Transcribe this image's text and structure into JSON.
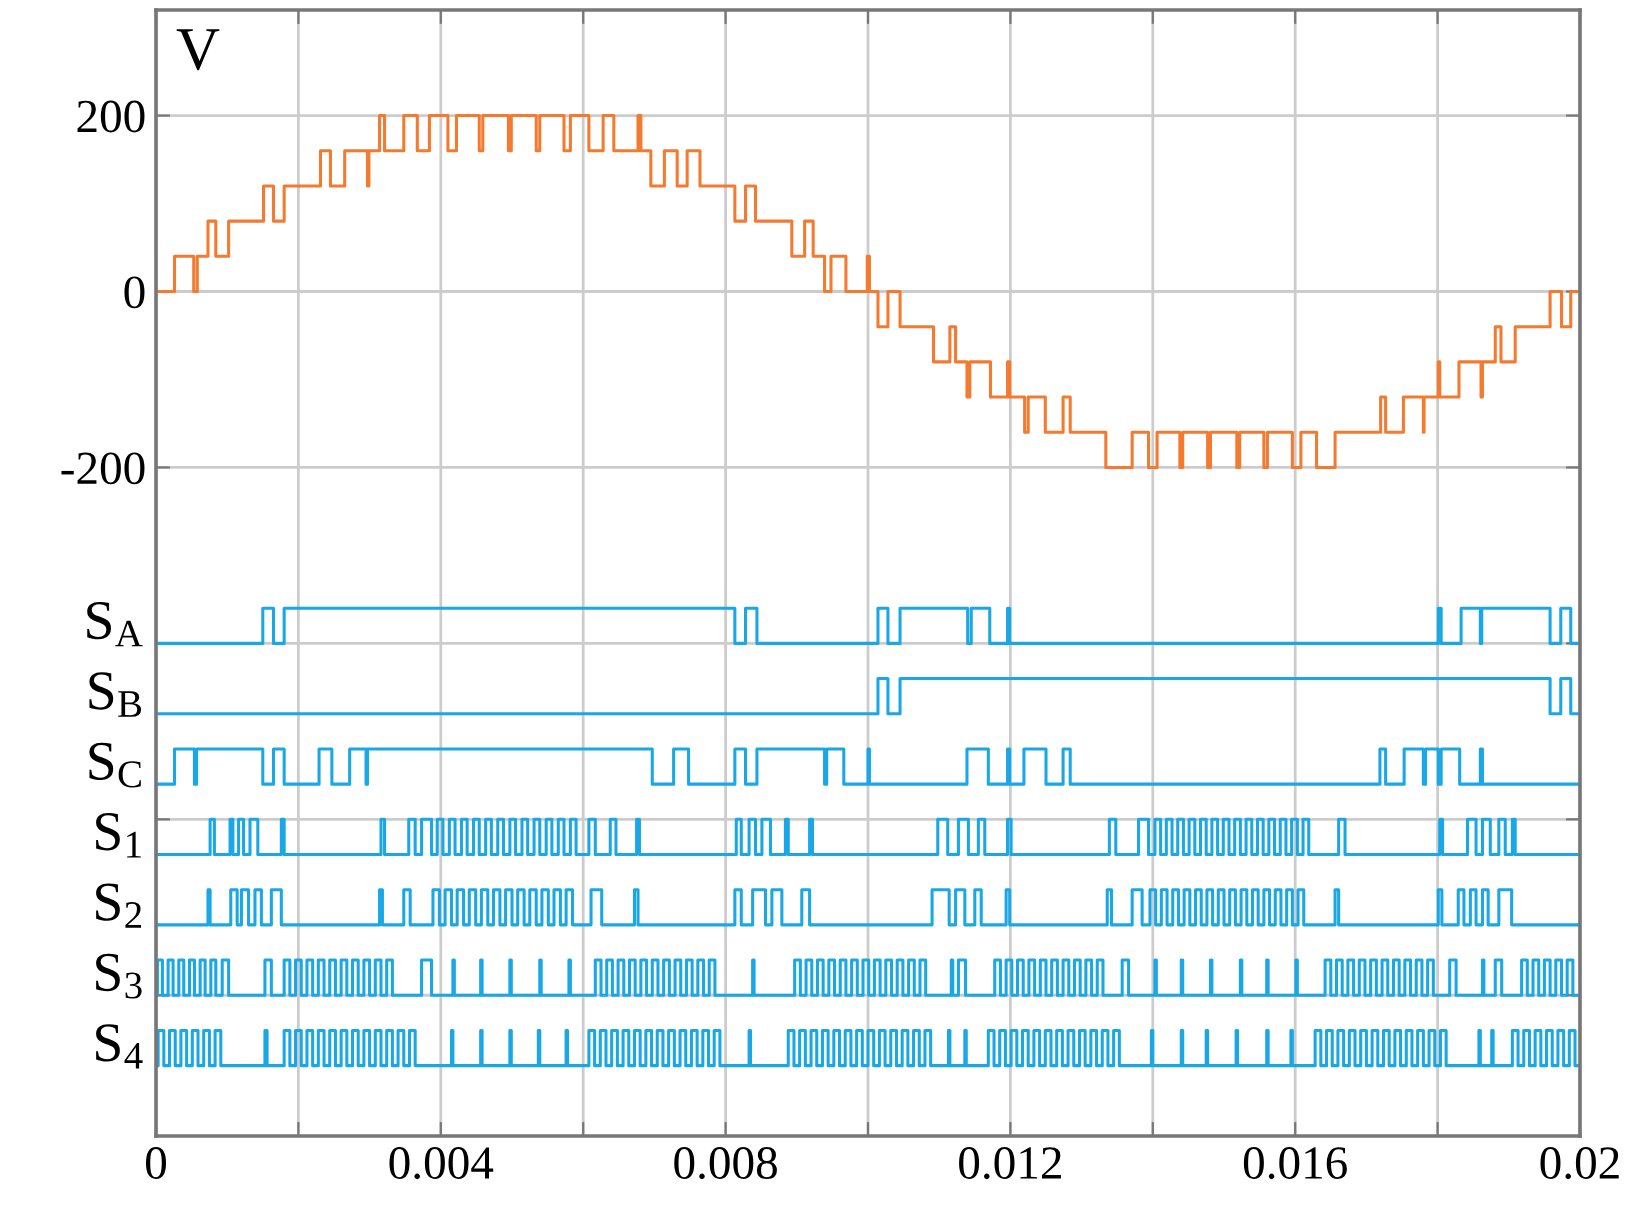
{
  "chart_data": {
    "type": "step",
    "ylabel": "V",
    "grid": true,
    "xlim": [
      0,
      0.02
    ],
    "ylim": [
      -960,
      320
    ],
    "xticks": [
      0,
      {
        "value": 0.002,
        "label": null
      },
      0.004,
      {
        "value": 0.006,
        "label": null
      },
      0.008,
      {
        "value": 0.01,
        "label": null
      },
      0.012,
      {
        "value": 0.014,
        "label": null
      },
      0.016,
      {
        "value": 0.018,
        "label": null
      },
      0.02
    ],
    "yticks": [
      200,
      0,
      -200,
      {
        "value": -400,
        "label": null
      },
      {
        "value": -600,
        "label": null
      },
      {
        "value": -800,
        "label": null
      }
    ],
    "series": [
      {
        "color": "#f47a30",
        "x": [
          0,
          0.00026,
          0.00053,
          0.00058,
          0.00073,
          0.00084,
          0.00102,
          0.00151,
          0.00165,
          0.0018,
          0.00231,
          0.00245,
          0.00265,
          0.00297,
          0.00299,
          0.00314,
          0.00321,
          0.00348,
          0.00367,
          0.00384,
          0.0041,
          0.00422,
          0.00454,
          0.00459,
          0.00495,
          0.00499,
          0.00534,
          0.00539,
          0.00573,
          0.00582,
          0.00608,
          0.00628,
          0.00643,
          0.00677,
          0.00681,
          0.00695,
          0.00714,
          0.00732,
          0.00746,
          0.00764,
          0.00813,
          0.00828,
          0.00842,
          0.00893,
          0.00911,
          0.00923,
          0.00939,
          0.00948,
          0.00969,
          0.00999,
          0.01002,
          0.01014,
          0.01028,
          0.01045,
          0.01092,
          0.01115,
          0.01123,
          0.01139,
          0.01143,
          0.01172,
          0.01196,
          0.01199,
          0.0122,
          0.01225,
          0.01249,
          0.01274,
          0.01284,
          0.01334,
          0.01371,
          0.01394,
          0.01406,
          0.01438,
          0.01442,
          0.01477,
          0.01481,
          0.01518,
          0.01522,
          0.01556,
          0.01561,
          0.01596,
          0.01608,
          0.0163,
          0.01656,
          0.0172,
          0.01727,
          0.01752,
          0.0178,
          0.01781,
          0.01801,
          0.01803,
          0.0183,
          0.01861,
          0.01863,
          0.01881,
          0.01889,
          0.01909,
          0.01958,
          0.01974,
          0.01987,
          0.02
        ],
        "values": [
          0,
          40,
          0,
          40,
          80,
          40,
          80,
          120,
          80,
          120,
          160,
          120,
          160,
          120,
          160,
          200,
          160,
          200,
          160,
          200,
          160,
          200,
          160,
          200,
          160,
          200,
          160,
          200,
          160,
          200,
          160,
          200,
          160,
          200,
          160,
          120,
          160,
          120,
          160,
          120,
          80,
          120,
          80,
          40,
          80,
          40,
          0,
          40,
          0,
          40,
          0,
          -40,
          0,
          -40,
          -80,
          -40,
          -80,
          -120,
          -80,
          -120,
          -80,
          -120,
          -160,
          -120,
          -160,
          -120,
          -160,
          -200,
          -160,
          -200,
          -160,
          -200,
          -160,
          -200,
          -160,
          -200,
          -160,
          -200,
          -160,
          -200,
          -160,
          -200,
          -160,
          -120,
          -160,
          -120,
          -160,
          -120,
          -80,
          -120,
          -80,
          -120,
          -80,
          -40,
          -80,
          -40,
          0,
          -40,
          0,
          0
        ]
      },
      {
        "name": "S$_{A}$",
        "color": "#1aa7e6",
        "x": [
          0,
          0.0015,
          0.00165,
          0.0018,
          0.00813,
          0.00828,
          0.00844,
          0.01014,
          0.01028,
          0.01045,
          0.0114,
          0.01145,
          0.01171,
          0.01196,
          0.01199,
          0.01801,
          0.01805,
          0.01833,
          0.0186,
          0.01862,
          0.01958,
          0.01973,
          0.01987,
          0.02
        ],
        "values": [
          -400,
          -360,
          -400,
          -360,
          -400,
          -360,
          -400,
          -360,
          -400,
          -360,
          -400,
          -360,
          -400,
          -360,
          -400,
          -360,
          -400,
          -360,
          -400,
          -360,
          -400,
          -360,
          -400,
          -400
        ]
      },
      {
        "name": "S$_{B}$",
        "color": "#1aa7e6",
        "x": [
          0,
          0.01014,
          0.01028,
          0.01045,
          0.01958,
          0.01973,
          0.01987,
          0.02
        ],
        "values": [
          -480,
          -440,
          -480,
          -440,
          -480,
          -440,
          -480,
          -480
        ]
      },
      {
        "name": "S$_{C}$",
        "color": "#1aa7e6",
        "x": [
          0,
          0.00026,
          0.00054,
          0.00057,
          0.0015,
          0.00165,
          0.0018,
          0.00229,
          0.00247,
          0.00272,
          0.00295,
          0.00297,
          0.00697,
          0.00727,
          0.00748,
          0.00813,
          0.00828,
          0.00844,
          0.00939,
          0.00942,
          0.00966,
          0.01,
          0.01002,
          0.01139,
          0.01169,
          0.01196,
          0.01199,
          0.01219,
          0.0125,
          0.01274,
          0.01284,
          0.01719,
          0.01727,
          0.01753,
          0.0178,
          0.01783,
          0.01801,
          0.01805,
          0.01831,
          0.0186,
          0.01863,
          0.02
        ],
        "values": [
          -560,
          -520,
          -560,
          -520,
          -560,
          -520,
          -560,
          -520,
          -560,
          -520,
          -560,
          -520,
          -560,
          -520,
          -560,
          -520,
          -560,
          -520,
          -560,
          -520,
          -560,
          -520,
          -560,
          -520,
          -560,
          -520,
          -560,
          -520,
          -560,
          -520,
          -560,
          -520,
          -560,
          -520,
          -560,
          -520,
          -560,
          -520,
          -560,
          -520,
          -560,
          -560
        ]
      },
      {
        "name": "S$_{1}$",
        "color": "#1aa7e6",
        "x": [
          0,
          0.00076,
          0.00082,
          0.00104,
          0.00108,
          0.00116,
          0.00123,
          0.00132,
          0.00143,
          0.00176,
          0.0018,
          0.00316,
          0.00321,
          0.00355,
          0.00364,
          0.00373,
          0.00387,
          0.00395,
          0.00403,
          0.00412,
          0.0042,
          0.00429,
          0.00437,
          0.00446,
          0.00454,
          0.00463,
          0.00471,
          0.0048,
          0.00488,
          0.00497,
          0.00505,
          0.00514,
          0.00522,
          0.00531,
          0.00539,
          0.00548,
          0.00556,
          0.00565,
          0.00573,
          0.00582,
          0.0059,
          0.00608,
          0.00617,
          0.00638,
          0.00646,
          0.00675,
          0.00679,
          0.00815,
          0.00822,
          0.00833,
          0.00842,
          0.00851,
          0.00863,
          0.00884,
          0.00888,
          0.00918,
          0.00922,
          0.01098,
          0.01112,
          0.01127,
          0.01141,
          0.01155,
          0.01164,
          0.01196,
          0.01201,
          0.01339,
          0.01348,
          0.0138,
          0.01394,
          0.01403,
          0.01411,
          0.01419,
          0.01427,
          0.01435,
          0.01443,
          0.01451,
          0.01459,
          0.01467,
          0.01475,
          0.01483,
          0.01491,
          0.01499,
          0.01507,
          0.01515,
          0.01523,
          0.01531,
          0.01539,
          0.01547,
          0.01555,
          0.01563,
          0.01571,
          0.01579,
          0.01587,
          0.01595,
          0.01603,
          0.01611,
          0.01619,
          0.01661,
          0.0167,
          0.01803,
          0.01807,
          0.01842,
          0.01854,
          0.01863,
          0.01874,
          0.01886,
          0.01895,
          0.01905,
          0.01909,
          0.02
        ],
        "values": [
          -640,
          -600,
          -640,
          -600,
          -640,
          -600,
          -640,
          -600,
          -640,
          -600,
          -640,
          -600,
          -640,
          -600,
          -640,
          -600,
          -640,
          -600,
          -640,
          -600,
          -640,
          -600,
          -640,
          -600,
          -640,
          -600,
          -640,
          -600,
          -640,
          -600,
          -640,
          -600,
          -640,
          -600,
          -640,
          -600,
          -640,
          -600,
          -640,
          -600,
          -640,
          -600,
          -640,
          -600,
          -640,
          -600,
          -640,
          -600,
          -640,
          -600,
          -640,
          -600,
          -640,
          -600,
          -640,
          -600,
          -640,
          -600,
          -640,
          -600,
          -640,
          -600,
          -640,
          -600,
          -640,
          -600,
          -640,
          -600,
          -640,
          -600,
          -640,
          -600,
          -640,
          -600,
          -640,
          -600,
          -640,
          -600,
          -640,
          -600,
          -640,
          -600,
          -640,
          -600,
          -640,
          -600,
          -640,
          -600,
          -640,
          -600,
          -640,
          -600,
          -640,
          -600,
          -640,
          -600,
          -640,
          -600,
          -640,
          -600,
          -640,
          -600,
          -640,
          -600,
          -640,
          -600,
          -640,
          -600,
          -640,
          -640
        ]
      },
      {
        "name": "S$_{2}$",
        "color": "#1aa7e6",
        "x": [
          0,
          0.00073,
          0.00076,
          0.00105,
          0.00114,
          0.0012,
          0.0013,
          0.00139,
          0.00148,
          0.00162,
          0.00176,
          0.00314,
          0.00318,
          0.00348,
          0.00357,
          0.00389,
          0.00398,
          0.00406,
          0.00415,
          0.00423,
          0.00432,
          0.0044,
          0.00449,
          0.00457,
          0.00466,
          0.00474,
          0.00483,
          0.00491,
          0.005,
          0.00508,
          0.00517,
          0.00525,
          0.00534,
          0.00542,
          0.00551,
          0.00559,
          0.00568,
          0.00576,
          0.00585,
          0.00611,
          0.00626,
          0.00672,
          0.00677,
          0.00813,
          0.00822,
          0.00838,
          0.00856,
          0.00865,
          0.00879,
          0.00907,
          0.00918,
          0.0109,
          0.01114,
          0.01123,
          0.01136,
          0.0115,
          0.01159,
          0.01194,
          0.01199,
          0.01336,
          0.01342,
          0.01371,
          0.01385,
          0.01396,
          0.01404,
          0.01412,
          0.0142,
          0.01428,
          0.01436,
          0.01444,
          0.01452,
          0.0146,
          0.01468,
          0.01476,
          0.01484,
          0.01492,
          0.015,
          0.01508,
          0.01516,
          0.01524,
          0.01532,
          0.0154,
          0.01548,
          0.01556,
          0.01564,
          0.01572,
          0.0158,
          0.01588,
          0.01596,
          0.01604,
          0.01612,
          0.01656,
          0.01661,
          0.01801,
          0.01806,
          0.01829,
          0.01837,
          0.01846,
          0.01854,
          0.01863,
          0.01871,
          0.01886,
          0.01904,
          0.02
        ],
        "values": [
          -720,
          -680,
          -720,
          -680,
          -720,
          -680,
          -720,
          -680,
          -720,
          -680,
          -720,
          -680,
          -720,
          -680,
          -720,
          -680,
          -720,
          -680,
          -720,
          -680,
          -720,
          -680,
          -720,
          -680,
          -720,
          -680,
          -720,
          -680,
          -720,
          -680,
          -720,
          -680,
          -720,
          -680,
          -720,
          -680,
          -720,
          -680,
          -720,
          -680,
          -720,
          -680,
          -720,
          -680,
          -720,
          -680,
          -720,
          -680,
          -720,
          -680,
          -720,
          -680,
          -720,
          -680,
          -720,
          -680,
          -720,
          -680,
          -720,
          -680,
          -720,
          -680,
          -720,
          -680,
          -720,
          -680,
          -720,
          -680,
          -720,
          -680,
          -720,
          -680,
          -720,
          -680,
          -720,
          -680,
          -720,
          -680,
          -720,
          -680,
          -720,
          -680,
          -720,
          -680,
          -720,
          -680,
          -720,
          -680,
          -720,
          -680,
          -720,
          -680,
          -720,
          -680,
          -720,
          -680,
          -720,
          -680,
          -720,
          -680,
          -720,
          -680,
          -720,
          -720
        ]
      },
      {
        "name": "S$_{3}$",
        "color": "#1aa7e6",
        "x": [
          0,
          2e-05,
          9e-05,
          0.00017,
          0.00024,
          0.00032,
          0.00039,
          0.00047,
          0.00054,
          0.00062,
          0.00069,
          0.00077,
          0.00084,
          0.00093,
          0.00102,
          0.00153,
          0.00162,
          0.0018,
          0.00188,
          0.00196,
          0.00204,
          0.00212,
          0.0022,
          0.00228,
          0.00236,
          0.00244,
          0.00252,
          0.0026,
          0.00268,
          0.00276,
          0.00284,
          0.00292,
          0.003,
          0.00308,
          0.00316,
          0.00324,
          0.00332,
          0.00373,
          0.00387,
          0.00417,
          0.00419,
          0.00456,
          0.00458,
          0.00497,
          0.00499,
          0.00539,
          0.00541,
          0.0058,
          0.00582,
          0.00617,
          0.00625,
          0.00633,
          0.00641,
          0.00649,
          0.00657,
          0.00665,
          0.00673,
          0.00681,
          0.00689,
          0.00697,
          0.00705,
          0.00713,
          0.00721,
          0.00729,
          0.00737,
          0.00745,
          0.00753,
          0.00761,
          0.00769,
          0.00777,
          0.00785,
          0.00838,
          0.0084,
          0.00897,
          0.00905,
          0.00913,
          0.00921,
          0.00929,
          0.00937,
          0.00945,
          0.00953,
          0.00961,
          0.00969,
          0.00977,
          0.00985,
          0.00993,
          0.01001,
          0.01009,
          0.01017,
          0.01025,
          0.01033,
          0.01041,
          0.01049,
          0.01057,
          0.01065,
          0.01073,
          0.01081,
          0.01117,
          0.01119,
          0.01127,
          0.01137,
          0.01178,
          0.01186,
          0.01194,
          0.01202,
          0.0121,
          0.01218,
          0.01226,
          0.01234,
          0.01242,
          0.0125,
          0.01258,
          0.01266,
          0.01274,
          0.01282,
          0.0129,
          0.01298,
          0.01306,
          0.01314,
          0.01322,
          0.0133,
          0.01357,
          0.01366,
          0.01403,
          0.01405,
          0.0144,
          0.01442,
          0.01481,
          0.01483,
          0.01523,
          0.01525,
          0.0156,
          0.01562,
          0.01601,
          0.01603,
          0.01642,
          0.0165,
          0.01658,
          0.01666,
          0.01674,
          0.01682,
          0.0169,
          0.01698,
          0.01706,
          0.01714,
          0.01722,
          0.0173,
          0.01738,
          0.01746,
          0.01754,
          0.01762,
          0.0177,
          0.01778,
          0.01786,
          0.01794,
          0.01817,
          0.01826,
          0.01863,
          0.01865,
          0.01881,
          0.0189,
          0.01918,
          0.01926,
          0.01934,
          0.01942,
          0.0195,
          0.01958,
          0.01966,
          0.01974,
          0.01982,
          0.0199,
          0.02
        ],
        "values": [
          -800,
          -760,
          -800,
          -760,
          -800,
          -760,
          -800,
          -760,
          -800,
          -760,
          -800,
          -760,
          -800,
          -760,
          -800,
          -760,
          -800,
          -760,
          -800,
          -760,
          -800,
          -760,
          -800,
          -760,
          -800,
          -760,
          -800,
          -760,
          -800,
          -760,
          -800,
          -760,
          -800,
          -760,
          -800,
          -760,
          -800,
          -760,
          -800,
          -760,
          -800,
          -760,
          -800,
          -760,
          -800,
          -760,
          -800,
          -760,
          -800,
          -760,
          -800,
          -760,
          -800,
          -760,
          -800,
          -760,
          -800,
          -760,
          -800,
          -760,
          -800,
          -760,
          -800,
          -760,
          -800,
          -760,
          -800,
          -760,
          -800,
          -760,
          -800,
          -760,
          -800,
          -760,
          -800,
          -760,
          -800,
          -760,
          -800,
          -760,
          -800,
          -760,
          -800,
          -760,
          -800,
          -760,
          -800,
          -760,
          -800,
          -760,
          -800,
          -760,
          -800,
          -760,
          -800,
          -760,
          -800,
          -760,
          -800,
          -760,
          -800,
          -760,
          -800,
          -760,
          -800,
          -760,
          -800,
          -760,
          -800,
          -760,
          -800,
          -760,
          -800,
          -760,
          -800,
          -760,
          -800,
          -760,
          -800,
          -760,
          -800,
          -760,
          -800,
          -760,
          -800,
          -760,
          -800,
          -760,
          -800,
          -760,
          -800,
          -760,
          -800,
          -760,
          -800,
          -760,
          -800,
          -760,
          -800,
          -760,
          -800,
          -760,
          -800,
          -760,
          -800,
          -760,
          -800,
          -760,
          -800,
          -760,
          -800,
          -760,
          -800,
          -760,
          -800,
          -760,
          -800,
          -760,
          -800,
          -760,
          -800,
          -760,
          -800,
          -760,
          -800,
          -760,
          -800,
          -760,
          -800,
          -760,
          -800,
          -800
        ]
      },
      {
        "name": "S$_{4}$",
        "color": "#1aa7e6",
        "x": [
          0,
          3e-05,
          0.00011,
          0.00019,
          0.00027,
          0.00035,
          0.00043,
          0.00051,
          0.00059,
          0.00067,
          0.00075,
          0.00083,
          0.00091,
          0.00153,
          0.00156,
          0.0018,
          0.00188,
          0.00196,
          0.00204,
          0.00212,
          0.0022,
          0.00228,
          0.00236,
          0.00244,
          0.00252,
          0.0026,
          0.00268,
          0.00276,
          0.00284,
          0.00292,
          0.003,
          0.00308,
          0.00316,
          0.00324,
          0.00332,
          0.0034,
          0.00348,
          0.00356,
          0.00364,
          0.00415,
          0.00417,
          0.00456,
          0.00458,
          0.00497,
          0.00499,
          0.00537,
          0.00539,
          0.00576,
          0.00578,
          0.00608,
          0.00616,
          0.00624,
          0.00632,
          0.0064,
          0.00648,
          0.00656,
          0.00664,
          0.00672,
          0.0068,
          0.00688,
          0.00696,
          0.00704,
          0.00712,
          0.0072,
          0.00728,
          0.00736,
          0.00744,
          0.00752,
          0.0076,
          0.00768,
          0.00776,
          0.00784,
          0.00792,
          0.00833,
          0.00835,
          0.00888,
          0.00896,
          0.00904,
          0.00912,
          0.0092,
          0.00928,
          0.00936,
          0.00944,
          0.00952,
          0.0096,
          0.00968,
          0.00976,
          0.00984,
          0.00992,
          0.01,
          0.01008,
          0.01016,
          0.01024,
          0.01032,
          0.0104,
          0.01048,
          0.01056,
          0.01064,
          0.01072,
          0.0108,
          0.01088,
          0.01113,
          0.01115,
          0.01136,
          0.01138,
          0.01169,
          0.01177,
          0.01185,
          0.01193,
          0.01201,
          0.01209,
          0.01217,
          0.01225,
          0.01233,
          0.01241,
          0.01249,
          0.01257,
          0.01265,
          0.01273,
          0.01281,
          0.01289,
          0.01297,
          0.01305,
          0.01313,
          0.01321,
          0.01329,
          0.01337,
          0.01345,
          0.01353,
          0.01398,
          0.014,
          0.0144,
          0.01442,
          0.01475,
          0.01477,
          0.01517,
          0.01519,
          0.0156,
          0.01562,
          0.01594,
          0.01596,
          0.01628,
          0.01636,
          0.01644,
          0.01652,
          0.0166,
          0.01668,
          0.01676,
          0.01684,
          0.01692,
          0.017,
          0.01708,
          0.01716,
          0.01724,
          0.01732,
          0.0174,
          0.01748,
          0.01756,
          0.01764,
          0.01772,
          0.0178,
          0.01788,
          0.01796,
          0.01804,
          0.01812,
          0.01858,
          0.0186,
          0.01876,
          0.01878,
          0.01905,
          0.01913,
          0.01921,
          0.01929,
          0.01937,
          0.01945,
          0.01953,
          0.01961,
          0.01969,
          0.01977,
          0.01985,
          0.01993,
          0.02
        ],
        "values": [
          -880,
          -840,
          -880,
          -840,
          -880,
          -840,
          -880,
          -840,
          -880,
          -840,
          -880,
          -840,
          -880,
          -840,
          -880,
          -840,
          -880,
          -840,
          -880,
          -840,
          -880,
          -840,
          -880,
          -840,
          -880,
          -840,
          -880,
          -840,
          -880,
          -840,
          -880,
          -840,
          -880,
          -840,
          -880,
          -840,
          -880,
          -840,
          -880,
          -840,
          -880,
          -840,
          -880,
          -840,
          -880,
          -840,
          -880,
          -840,
          -880,
          -840,
          -880,
          -840,
          -880,
          -840,
          -880,
          -840,
          -880,
          -840,
          -880,
          -840,
          -880,
          -840,
          -880,
          -840,
          -880,
          -840,
          -880,
          -840,
          -880,
          -840,
          -880,
          -840,
          -880,
          -840,
          -880,
          -840,
          -880,
          -840,
          -880,
          -840,
          -880,
          -840,
          -880,
          -840,
          -880,
          -840,
          -880,
          -840,
          -880,
          -840,
          -880,
          -840,
          -880,
          -840,
          -880,
          -840,
          -880,
          -840,
          -880,
          -840,
          -880,
          -840,
          -880,
          -840,
          -880,
          -840,
          -880,
          -840,
          -880,
          -840,
          -880,
          -840,
          -880,
          -840,
          -880,
          -840,
          -880,
          -840,
          -880,
          -840,
          -880,
          -840,
          -880,
          -840,
          -880,
          -840,
          -880,
          -840,
          -880,
          -840,
          -880,
          -840,
          -880,
          -840,
          -880,
          -840,
          -880,
          -840,
          -880,
          -840,
          -880,
          -840,
          -880,
          -840,
          -880,
          -840,
          -880,
          -840,
          -880,
          -840,
          -880,
          -840,
          -880,
          -840,
          -880,
          -840,
          -880,
          -840,
          -880,
          -840,
          -880,
          -840,
          -880,
          -840,
          -880,
          -840,
          -880,
          -840,
          -880,
          -840,
          -880,
          -840,
          -880,
          -840,
          -880,
          -840,
          -880,
          -840,
          -880,
          -840,
          -880,
          -880
        ]
      }
    ]
  }
}
